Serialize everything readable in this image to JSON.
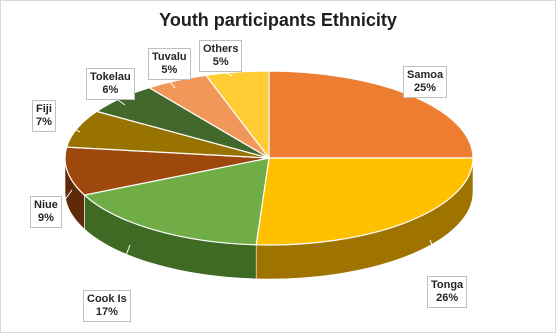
{
  "chart_data": {
    "type": "pie",
    "title": "Youth participants Ethnicity",
    "slices": [
      {
        "label": "Samoa",
        "value": 25,
        "display": "25%",
        "color": "#ED7D31",
        "side": "#A0521B"
      },
      {
        "label": "Tonga",
        "value": 26,
        "display": "26%",
        "color": "#FFC000",
        "side": "#9E7300"
      },
      {
        "label": "Cook Is",
        "value": 17,
        "display": "17%",
        "color": "#70AD47",
        "side": "#3F6A23"
      },
      {
        "label": "Niue",
        "value": 9,
        "display": "9%",
        "color": "#9E480E",
        "side": "#5E2A07"
      },
      {
        "label": "Fiji",
        "value": 7,
        "display": "7%",
        "color": "#997300",
        "side": "#5A4400"
      },
      {
        "label": "Tokelau",
        "value": 6,
        "display": "6%",
        "color": "#43682B",
        "side": "#263D17"
      },
      {
        "label": "Tuvalu",
        "value": 5,
        "display": "5%",
        "color": "#F1975A",
        "side": "#B05F27"
      },
      {
        "label": "Others",
        "value": 5,
        "display": "5%",
        "color": "#FFCD33",
        "side": "#B38A12"
      }
    ],
    "legend": "none",
    "data_labels": "outside-callout"
  }
}
